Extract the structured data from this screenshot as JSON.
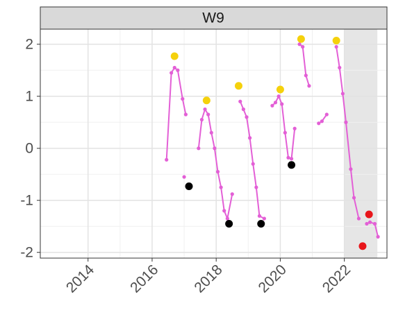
{
  "chart_data": {
    "type": "line",
    "strip": "W9",
    "x": [
      2016.45,
      2016.6,
      2016.7,
      2016.8,
      2016.95,
      2017.05,
      null,
      2017.0,
      null,
      2017.45,
      2017.55,
      2017.65,
      2017.75,
      2017.85,
      2017.95,
      2018.05,
      2018.15,
      2018.25,
      2018.35,
      2018.5,
      null,
      2018.75,
      2018.85,
      2018.95,
      2019.05,
      2019.15,
      2019.25,
      2019.35,
      2019.5,
      null,
      2019.75,
      2019.85,
      2019.95,
      2020.05,
      2020.15,
      2020.25,
      2020.35,
      2020.45,
      null,
      2020.6,
      2020.7,
      2020.8,
      2020.9,
      null,
      2021.2,
      2021.3,
      2021.45,
      null,
      2021.75,
      2021.85,
      2021.95,
      2022.05,
      2022.2,
      2022.3,
      2022.45,
      null,
      2022.7,
      2022.8,
      2022.95,
      2023.05
    ],
    "series": [
      {
        "color": "#e35fd6",
        "values": [
          -0.22,
          1.45,
          1.55,
          1.5,
          0.95,
          0.65,
          null,
          -0.55,
          null,
          0,
          0.55,
          0.75,
          0.65,
          0.3,
          0,
          -0.45,
          -0.75,
          -1.2,
          -1.35,
          -0.88,
          null,
          0.9,
          0.75,
          0.6,
          0.2,
          -0.3,
          -0.75,
          -1.3,
          -1.35,
          null,
          0.82,
          0.88,
          1.0,
          0.85,
          0.3,
          -0.18,
          -0.2,
          0.38,
          null,
          2.0,
          1.95,
          1.4,
          1.2,
          null,
          0.48,
          0.52,
          0.65,
          null,
          1.95,
          1.55,
          1.05,
          0.5,
          -0.4,
          -0.95,
          -1.35,
          null,
          -1.45,
          -1.42,
          -1.45,
          -1.7
        ]
      }
    ],
    "points": [
      {
        "color": "#f5d10c",
        "x": [
          2016.7,
          2017.7,
          2018.7,
          2020.0,
          2020.65,
          2021.75
        ],
        "values": [
          1.77,
          0.92,
          1.2,
          1.13,
          2.1,
          2.07
        ]
      },
      {
        "color": "#000000",
        "x": [
          2017.15,
          2018.4,
          2019.4,
          2020.35
        ],
        "values": [
          -0.73,
          -1.45,
          -1.45,
          -0.32
        ]
      },
      {
        "color": "#e8161b",
        "x": [
          2022.57,
          2022.77
        ],
        "values": [
          -1.88,
          -1.27
        ]
      }
    ],
    "highlight_x": [
      2022,
      2023.03
    ],
    "xlim": [
      2012.51,
      2023.33
    ],
    "ylim": [
      -2.11,
      2.29
    ],
    "xticks": [
      2014,
      2016,
      2018,
      2020,
      2022
    ],
    "yticks": [
      -2,
      -1,
      0,
      1,
      2
    ],
    "grid": true
  }
}
